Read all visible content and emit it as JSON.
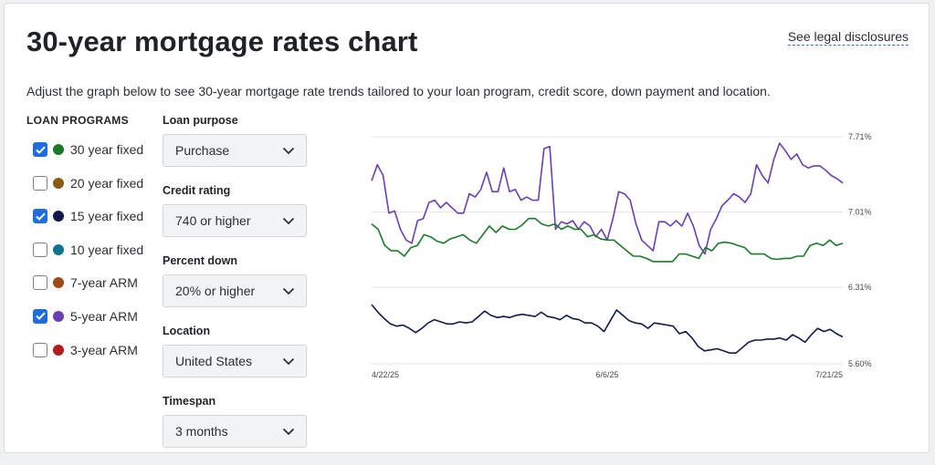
{
  "header": {
    "title": "30-year mortgage rates chart",
    "legal_link": "See legal disclosures",
    "subtitle": "Adjust the graph below to see 30-year mortgage rate trends tailored to your loan program, credit score, down payment and location."
  },
  "programs": {
    "header": "LOAN PROGRAMS",
    "items": [
      {
        "label": "30 year fixed",
        "color": "#1a7a2a",
        "checked": true
      },
      {
        "label": "20 year fixed",
        "color": "#8a5a12",
        "checked": false
      },
      {
        "label": "15 year fixed",
        "color": "#0e1a4a",
        "checked": true
      },
      {
        "label": "10 year fixed",
        "color": "#0f7390",
        "checked": false
      },
      {
        "label": "7-year ARM",
        "color": "#a04a18",
        "checked": false
      },
      {
        "label": "5-year ARM",
        "color": "#6a3fb0",
        "checked": true
      },
      {
        "label": "3-year ARM",
        "color": "#b01c1c",
        "checked": false
      }
    ]
  },
  "filters": [
    {
      "label": "Loan purpose",
      "value": "Purchase"
    },
    {
      "label": "Credit rating",
      "value": "740 or higher"
    },
    {
      "label": "Percent down",
      "value": "20% or higher"
    },
    {
      "label": "Location",
      "value": "United States"
    },
    {
      "label": "Timespan",
      "value": "3 months"
    }
  ],
  "chart_data": {
    "type": "line",
    "x_ticks": [
      "4/22/25",
      "6/6/25",
      "7/21/25"
    ],
    "y_ticks": [
      "7.71%",
      "7.01%",
      "6.31%",
      "5.60%"
    ],
    "ylim": [
      5.6,
      7.71
    ],
    "grid": true,
    "series": [
      {
        "name": "5-year ARM",
        "color": "#6a3fb0",
        "values": [
          7.3,
          7.45,
          7.35,
          7.0,
          7.02,
          6.85,
          6.75,
          6.72,
          6.93,
          6.95,
          7.1,
          7.12,
          7.05,
          7.1,
          7.05,
          7.0,
          7.0,
          7.18,
          7.15,
          7.22,
          7.38,
          7.2,
          7.2,
          7.42,
          7.2,
          7.22,
          7.12,
          7.15,
          7.12,
          7.12,
          7.6,
          7.62,
          6.85,
          6.92,
          6.9,
          6.93,
          6.85,
          6.92,
          6.88,
          6.78,
          6.85,
          6.75,
          6.95,
          7.2,
          7.18,
          7.12,
          6.9,
          6.75,
          6.7,
          6.65,
          6.92,
          6.92,
          6.88,
          6.93,
          6.88,
          7.0,
          6.88,
          6.7,
          6.62,
          6.85,
          6.95,
          7.07,
          7.12,
          7.18,
          7.15,
          7.1,
          7.18,
          7.45,
          7.35,
          7.28,
          7.5,
          7.65,
          7.58,
          7.5,
          7.55,
          7.45,
          7.42,
          7.44,
          7.44,
          7.4,
          7.35,
          7.32,
          7.28
        ]
      },
      {
        "name": "30 year fixed",
        "color": "#1a7a2a",
        "values": [
          6.9,
          6.85,
          6.7,
          6.65,
          6.65,
          6.6,
          6.68,
          6.7,
          6.8,
          6.78,
          6.74,
          6.72,
          6.76,
          6.78,
          6.8,
          6.75,
          6.72,
          6.8,
          6.88,
          6.82,
          6.88,
          6.85,
          6.85,
          6.89,
          6.95,
          6.95,
          6.9,
          6.88,
          6.9,
          6.85,
          6.88,
          6.85,
          6.85,
          6.78,
          6.8,
          6.76,
          6.75,
          6.75,
          6.7,
          6.65,
          6.6,
          6.6,
          6.58,
          6.55,
          6.55,
          6.55,
          6.55,
          6.62,
          6.62,
          6.6,
          6.58,
          6.68,
          6.65,
          6.72,
          6.73,
          6.72,
          6.7,
          6.68,
          6.62,
          6.62,
          6.62,
          6.58,
          6.57,
          6.58,
          6.58,
          6.6,
          6.6,
          6.7,
          6.72,
          6.7,
          6.75,
          6.7,
          6.72
        ]
      },
      {
        "name": "15 year fixed",
        "color": "#0e1a4a",
        "values": [
          6.15,
          6.08,
          6.02,
          5.97,
          5.95,
          5.96,
          5.93,
          5.89,
          5.93,
          5.98,
          6.01,
          5.99,
          5.97,
          5.97,
          5.99,
          5.98,
          5.99,
          6.04,
          6.09,
          6.05,
          6.03,
          6.04,
          6.03,
          6.05,
          6.06,
          6.05,
          6.04,
          6.08,
          6.04,
          6.03,
          6.01,
          6.05,
          6.02,
          6.01,
          5.98,
          5.98,
          5.95,
          5.9,
          6.0,
          6.1,
          6.05,
          6.0,
          5.98,
          5.97,
          5.93,
          5.98,
          5.97,
          5.96,
          5.95,
          5.88,
          5.9,
          5.84,
          5.76,
          5.72,
          5.73,
          5.74,
          5.72,
          5.7,
          5.7,
          5.75,
          5.8,
          5.82,
          5.82,
          5.83,
          5.83,
          5.84,
          5.82,
          5.87,
          5.84,
          5.8,
          5.87,
          5.93,
          5.9,
          5.92,
          5.88,
          5.85
        ]
      }
    ]
  }
}
